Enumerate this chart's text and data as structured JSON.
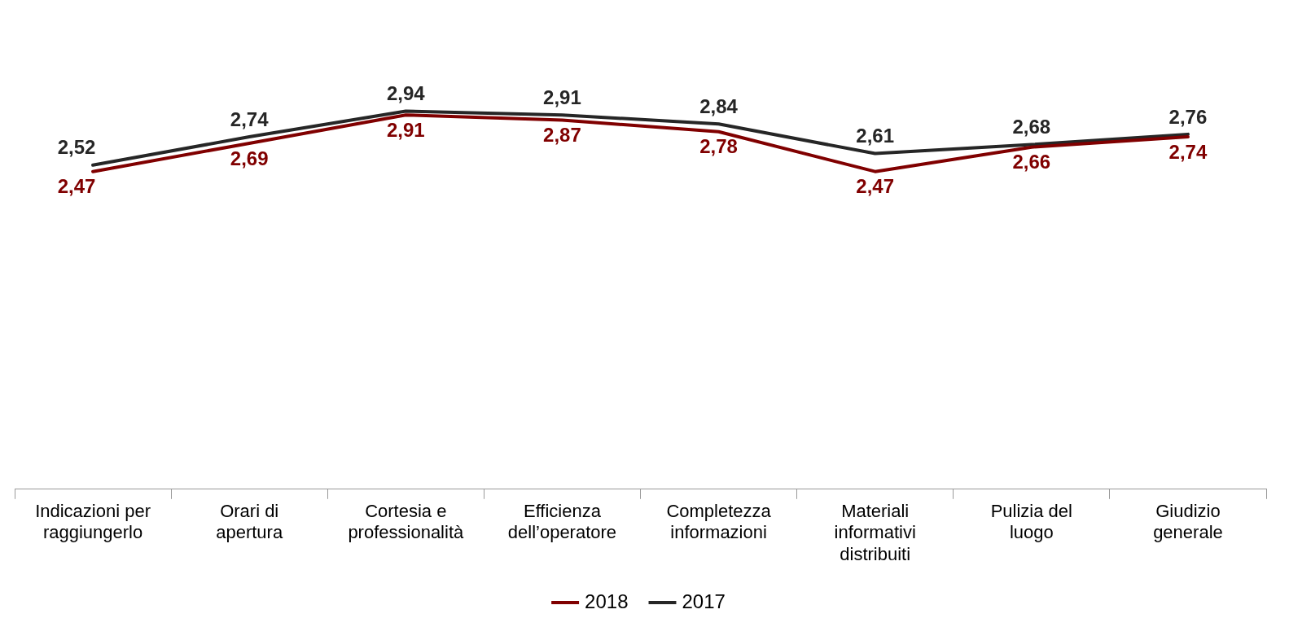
{
  "chart_data": {
    "type": "line",
    "categories": [
      "Indicazioni per raggiungerlo",
      "Orari di apertura",
      "Cortesia e professionalità",
      "Efficienza dell’operatore",
      "Completezza informazioni",
      "Materiali informativi distribuiti",
      "Pulizia del luogo",
      "Giudizio generale"
    ],
    "series": [
      {
        "name": "2018",
        "color": "#800000",
        "values": [
          2.47,
          2.69,
          2.91,
          2.87,
          2.78,
          2.47,
          2.66,
          2.74
        ],
        "value_labels": [
          "2,47",
          "2,69",
          "2,91",
          "2,87",
          "2,78",
          "2,47",
          "2,66",
          "2,74"
        ]
      },
      {
        "name": "2017",
        "color": "#262626",
        "values": [
          2.52,
          2.74,
          2.94,
          2.91,
          2.84,
          2.61,
          2.68,
          2.76
        ],
        "value_labels": [
          "2,52",
          "2,74",
          "2,94",
          "2,91",
          "2,84",
          "2,61",
          "2,68",
          "2,76"
        ]
      }
    ],
    "legend": "bottom",
    "marker": "none",
    "line_style": "solid"
  }
}
